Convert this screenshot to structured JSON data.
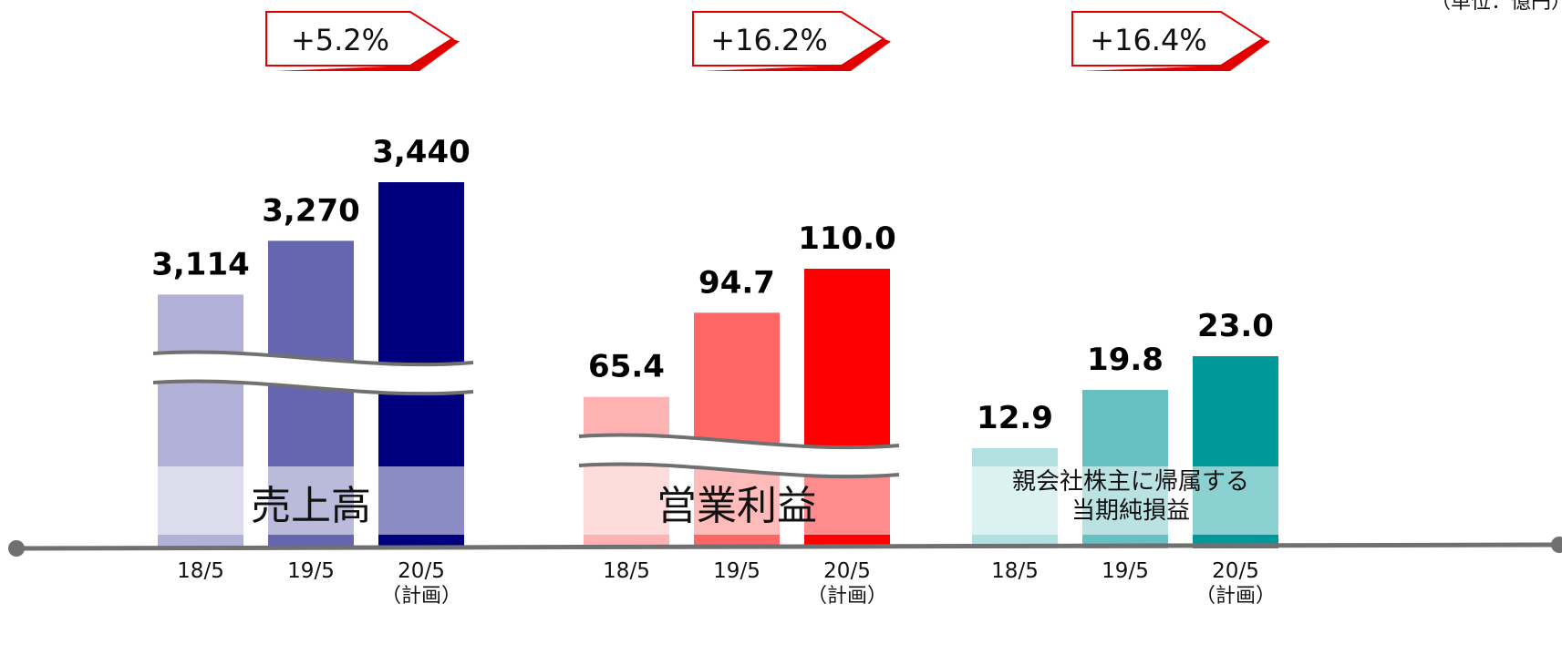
{
  "unit_label": "（単位：億円）",
  "chart_data": [
    {
      "type": "bar",
      "label": "売上高",
      "categories": [
        "18/5",
        "19/5",
        "20/5"
      ],
      "category_notes": [
        "",
        "",
        "（計画）"
      ],
      "values": [
        3114,
        3270,
        3440
      ],
      "value_labels": [
        "3,114",
        "3,270",
        "3,440"
      ],
      "growth_label": "+5.2%",
      "colors": [
        "#b2b2d8",
        "#6666b0",
        "#00007f"
      ],
      "axis_break": true
    },
    {
      "type": "bar",
      "label": "営業利益",
      "categories": [
        "18/5",
        "19/5",
        "20/5"
      ],
      "category_notes": [
        "",
        "",
        "（計画）"
      ],
      "values": [
        65.4,
        94.7,
        110.0
      ],
      "value_labels": [
        "65.4",
        "94.7",
        "110.0"
      ],
      "growth_label": "+16.2%",
      "colors": [
        "#ffb2b2",
        "#ff6666",
        "#ff0000"
      ],
      "axis_break": true
    },
    {
      "type": "bar",
      "label": "親会社株主に帰属する 当期純損益",
      "label_lines": [
        "親会社株主に帰属する",
        "当期純損益"
      ],
      "categories": [
        "18/5",
        "19/5",
        "20/5"
      ],
      "category_notes": [
        "",
        "",
        "（計画）"
      ],
      "values": [
        12.9,
        19.8,
        23.0
      ],
      "value_labels": [
        "12.9",
        "19.8",
        "23.0"
      ],
      "growth_label": "+16.4%",
      "colors": [
        "#b2dfe0",
        "#66bfc0",
        "#009999"
      ],
      "axis_break": false
    }
  ]
}
